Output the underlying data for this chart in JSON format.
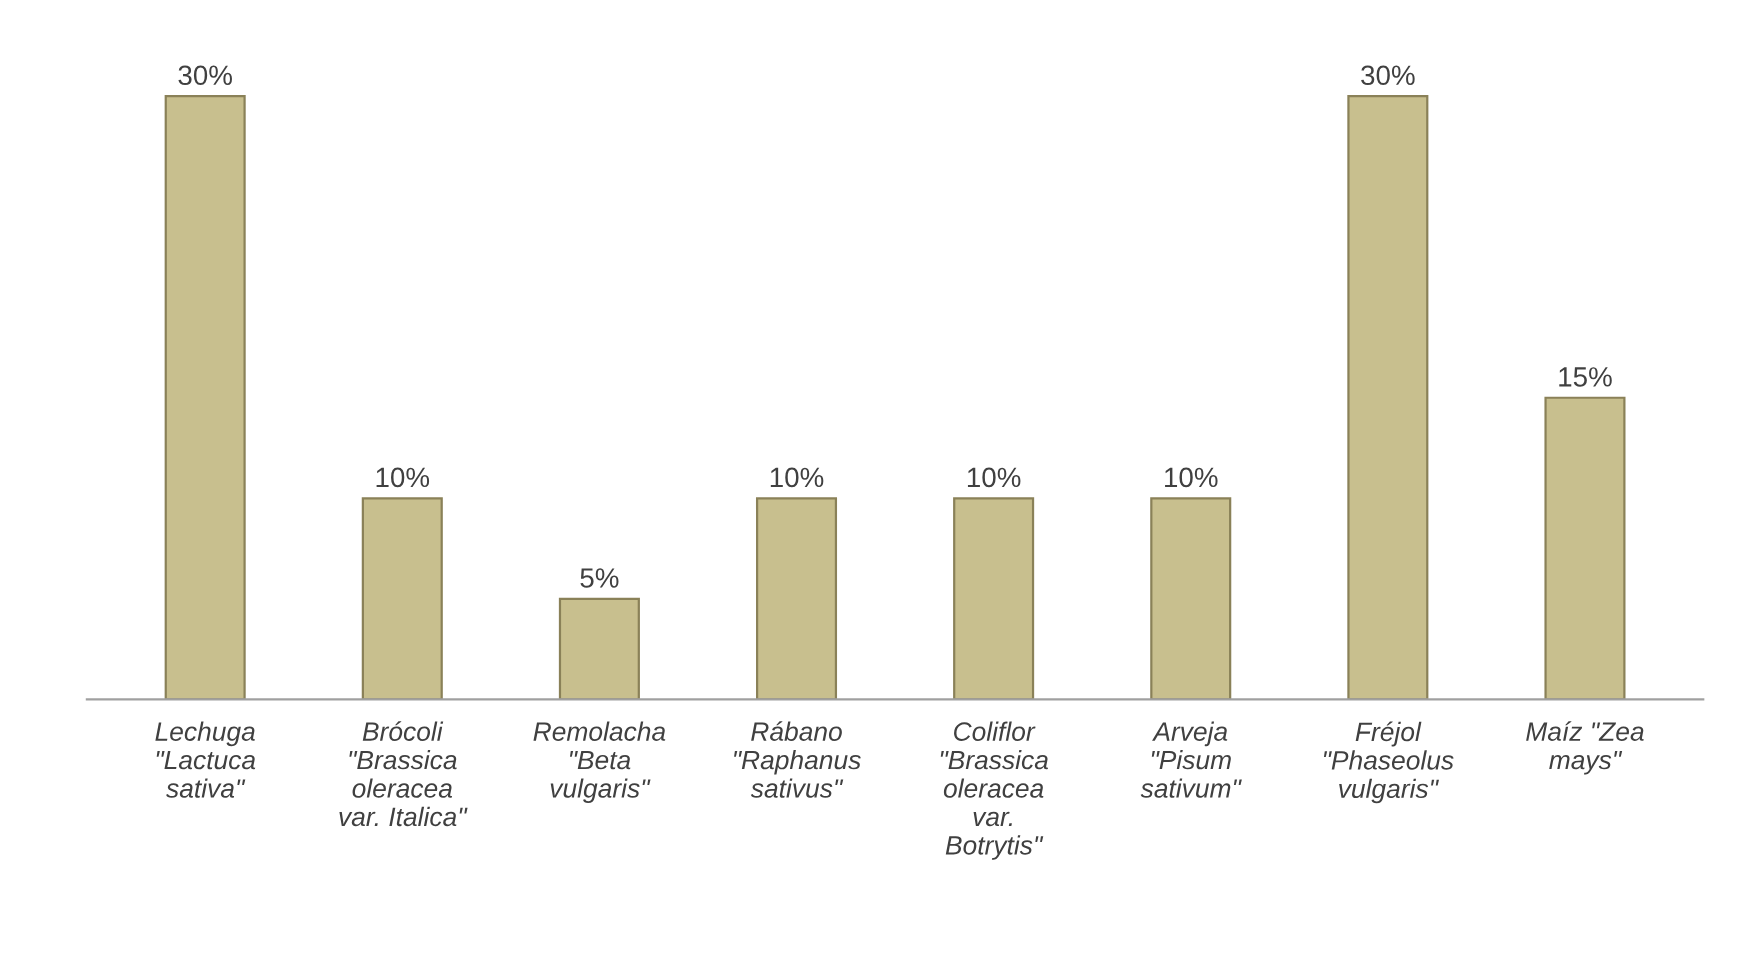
{
  "chart_data": {
    "type": "bar",
    "categories": [
      "Lechuga\n\"Lactuca\nsativa\"",
      "Brócoli\n\"Brassica\noleracea\nvar. Italica\"",
      "Remolacha\n\"Beta\nvulgaris\"",
      "Rábano\n\"Raphanus\nsativus\"",
      "Coliflor\n\"Brassica\noleracea\nvar.\nBotrytis\"",
      "Arveja\n\"Pisum\nsativum\"",
      "Fréjol\n\"Phaseolus\nvulgaris\"",
      "Maíz \"Zea\nmays\""
    ],
    "values": [
      30,
      10,
      5,
      10,
      10,
      10,
      30,
      15
    ],
    "value_labels": [
      "30%",
      "10%",
      "5%",
      "10%",
      "10%",
      "10%",
      "30%",
      "15%"
    ],
    "color": "#c8bf8e",
    "grid": false,
    "legend": false
  }
}
